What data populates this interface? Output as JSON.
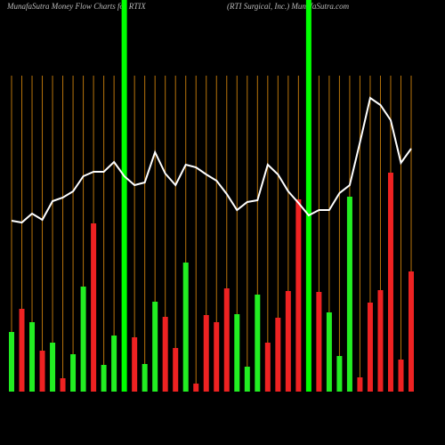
{
  "chart_data": {
    "type": "bar",
    "title": "MunafaSutra  Money Flow  Charts for RTIX",
    "subtitle": "(RTI Surgical, Inc.) MunafaSutra.com",
    "categories": [
      null,
      null,
      null,
      null,
      null,
      null,
      null,
      null,
      null,
      null,
      null,
      null,
      null,
      null,
      null,
      null,
      null,
      null,
      null,
      null,
      null,
      null,
      null,
      null,
      null,
      null,
      null,
      null,
      null,
      null,
      null,
      null,
      null,
      null,
      null,
      null,
      null,
      null,
      null,
      null
    ],
    "ylim": [
      0,
      440
    ],
    "grid_color": "#b8740b",
    "highlight_color": "#00ff00",
    "highlights": [
      11,
      29
    ],
    "bars": {
      "values": [
        67,
        93,
        78,
        46,
        55,
        15,
        42,
        118,
        189,
        30,
        63,
        null,
        61,
        31,
        101,
        84,
        49,
        145,
        9,
        86,
        78,
        116,
        87,
        28,
        109,
        55,
        83,
        113,
        216,
        null,
        112,
        89,
        40,
        219,
        16,
        100,
        114,
        246,
        36,
        135
      ],
      "colors": [
        "#22ee22",
        "#ee2222",
        "#22ee22",
        "#ee2222",
        "#22ee22",
        "#ee2222",
        "#22ee22",
        "#22ee22",
        "#ee2222",
        "#22ee22",
        "#22ee22",
        null,
        "#ee2222",
        "#22ee22",
        "#22ee22",
        "#ee2222",
        "#ee2222",
        "#22ee22",
        "#ee2222",
        "#ee2222",
        "#ee2222",
        "#ee2222",
        "#22ee22",
        "#22ee22",
        "#22ee22",
        "#ee2222",
        "#ee2222",
        "#ee2222",
        "#ee2222",
        null,
        "#ee2222",
        "#22ee22",
        "#22ee22",
        "#22ee22",
        "#ee2222",
        "#ee2222",
        "#ee2222",
        "#ee2222",
        "#ee2222",
        "#ee2222"
      ]
    },
    "line": {
      "color": "#ffffff",
      "values": [
        192,
        190,
        200,
        193,
        214,
        218,
        225,
        242,
        247,
        247,
        258,
        242,
        232,
        235,
        269,
        245,
        232,
        255,
        252,
        244,
        237,
        222,
        204,
        213,
        215,
        255,
        244,
        225,
        212,
        198,
        204,
        204,
        223,
        232,
        280,
        330,
        322,
        305,
        257,
        273
      ]
    }
  }
}
